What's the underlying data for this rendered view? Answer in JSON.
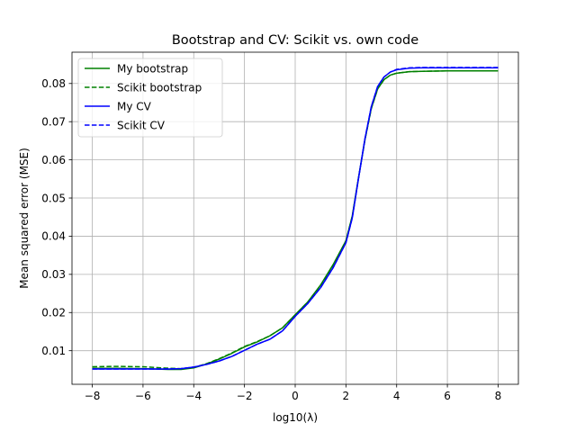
{
  "chart_data": {
    "type": "line",
    "title": "Bootstrap and CV: Scikit vs. own code",
    "xlabel": "log10(λ)",
    "ylabel": "Mean squared error (MSE)",
    "xlim": [
      -8.8,
      8.8
    ],
    "ylim": [
      0.0012,
      0.0882
    ],
    "xticks": [
      -8,
      -6,
      -4,
      -2,
      0,
      2,
      4,
      6,
      8
    ],
    "xtick_labels": [
      "−8",
      "−6",
      "−4",
      "−2",
      "0",
      "2",
      "4",
      "6",
      "8"
    ],
    "yticks": [
      0.01,
      0.02,
      0.03,
      0.04,
      0.05,
      0.06,
      0.07,
      0.08
    ],
    "ytick_labels": [
      "0.01",
      "0.02",
      "0.03",
      "0.04",
      "0.05",
      "0.06",
      "0.07",
      "0.08"
    ],
    "grid": true,
    "legend_position": "top-left",
    "series": [
      {
        "name": "My bootstrap",
        "color": "#008000",
        "dash": "solid",
        "x": [
          -8,
          -7,
          -6,
          -5,
          -4.5,
          -4,
          -3.5,
          -3,
          -2.5,
          -2,
          -1.5,
          -1,
          -0.5,
          0,
          0.5,
          1,
          1.5,
          2,
          2.25,
          2.5,
          2.75,
          3,
          3.25,
          3.5,
          3.75,
          4,
          4.5,
          5,
          6,
          7,
          8
        ],
        "y": [
          0.0054,
          0.0054,
          0.0053,
          0.0051,
          0.0051,
          0.0055,
          0.0065,
          0.0078,
          0.0093,
          0.011,
          0.0123,
          0.0139,
          0.016,
          0.0194,
          0.0228,
          0.0272,
          0.0326,
          0.0388,
          0.0453,
          0.0555,
          0.0653,
          0.0735,
          0.0786,
          0.081,
          0.0822,
          0.0827,
          0.0831,
          0.0832,
          0.0833,
          0.0833,
          0.0833
        ]
      },
      {
        "name": "Scikit bootstrap",
        "color": "#008000",
        "dash": "dashed",
        "x": [
          -8,
          -7,
          -6,
          -5,
          -4.5,
          -4,
          -3.5,
          -3,
          -2.5,
          -2,
          -1.5,
          -1,
          -0.5,
          0,
          0.5,
          1,
          1.5,
          2,
          2.25,
          2.5,
          2.75,
          3,
          3.25,
          3.5,
          3.75,
          4,
          4.5,
          5,
          6,
          7,
          8
        ],
        "y": [
          0.0058,
          0.0059,
          0.0058,
          0.0054,
          0.0053,
          0.0056,
          0.0066,
          0.0079,
          0.0094,
          0.0111,
          0.0124,
          0.0139,
          0.016,
          0.0194,
          0.0228,
          0.0271,
          0.0325,
          0.0388,
          0.0452,
          0.0554,
          0.0652,
          0.0734,
          0.0786,
          0.081,
          0.0822,
          0.0827,
          0.0831,
          0.0832,
          0.0833,
          0.0833,
          0.0833
        ]
      },
      {
        "name": "My CV",
        "color": "#0000ff",
        "dash": "solid",
        "x": [
          -8,
          -7,
          -6,
          -5,
          -4.5,
          -4,
          -3.5,
          -3,
          -2.5,
          -2,
          -1.5,
          -1,
          -0.5,
          0,
          0.5,
          1,
          1.5,
          2,
          2.25,
          2.5,
          2.75,
          3,
          3.25,
          3.5,
          3.75,
          4,
          4.5,
          5,
          6,
          7,
          8
        ],
        "y": [
          0.0052,
          0.0052,
          0.0052,
          0.0052,
          0.0053,
          0.0057,
          0.0064,
          0.0073,
          0.0085,
          0.0101,
          0.0117,
          0.013,
          0.0152,
          0.019,
          0.0224,
          0.0265,
          0.0318,
          0.0383,
          0.0448,
          0.0553,
          0.0655,
          0.0739,
          0.0792,
          0.0817,
          0.083,
          0.0836,
          0.084,
          0.0841,
          0.0841,
          0.0841,
          0.0841
        ]
      },
      {
        "name": "Scikit CV",
        "color": "#0000ff",
        "dash": "dashed",
        "x": [
          -8,
          -7,
          -6,
          -5,
          -4.5,
          -4,
          -3.5,
          -3,
          -2.5,
          -2,
          -1.5,
          -1,
          -0.5,
          0,
          0.5,
          1,
          1.5,
          2,
          2.25,
          2.5,
          2.75,
          3,
          3.25,
          3.5,
          3.75,
          4,
          4.5,
          5,
          6,
          7,
          8
        ],
        "y": [
          0.0052,
          0.0052,
          0.0052,
          0.0052,
          0.0053,
          0.0057,
          0.0064,
          0.0073,
          0.0085,
          0.0101,
          0.0117,
          0.013,
          0.0152,
          0.019,
          0.0224,
          0.0265,
          0.0318,
          0.0383,
          0.0448,
          0.0553,
          0.0655,
          0.0739,
          0.0792,
          0.0817,
          0.083,
          0.0837,
          0.0841,
          0.0842,
          0.0842,
          0.0842,
          0.0842
        ]
      }
    ]
  }
}
